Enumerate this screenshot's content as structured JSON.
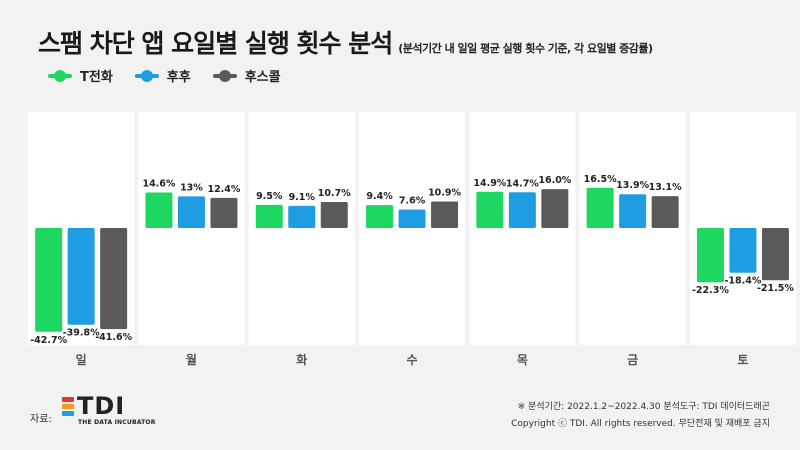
{
  "header": {
    "title": "스팸 차단 앱 요일별 실행 횟수 분석",
    "subtitle": "(분석기간 내 일일 평균 실행 횟수 기준, 각 요일별 증감률)"
  },
  "colors": {
    "background": "#f2f2f2",
    "panel": "#ffffff",
    "tick_label": "#555555",
    "data_label": "#222222"
  },
  "chart_data": {
    "type": "bar",
    "categories": [
      "일",
      "월",
      "화",
      "수",
      "목",
      "금",
      "토"
    ],
    "series": [
      {
        "name": "T전화",
        "color": "#1ed760",
        "values": [
          -42.7,
          14.6,
          9.5,
          9.4,
          14.9,
          16.5,
          -22.3
        ],
        "labels": [
          "-42.7%",
          "14.6%",
          "9.5%",
          "9.4%",
          "14.9%",
          "16.5%",
          "-22.3%"
        ]
      },
      {
        "name": "후후",
        "color": "#1f9de2",
        "values": [
          -39.8,
          13,
          9.1,
          7.6,
          14.7,
          13.9,
          -18.4
        ],
        "labels": [
          "-39.8%",
          "13%",
          "9.1%",
          "7.6%",
          "14.7%",
          "13.9%",
          "-18.4%"
        ]
      },
      {
        "name": "후스콜",
        "color": "#5a5a5a",
        "values": [
          -41.6,
          12.4,
          10.7,
          10.9,
          16.0,
          13.1,
          -21.5
        ],
        "labels": [
          "-41.6%",
          "12.4%",
          "10.7%",
          "10.9%",
          "16.0%",
          "13.1%",
          "-21.5%"
        ]
      }
    ],
    "legend_position": "top-left",
    "grid": false
  },
  "footer": {
    "source_label": "자료:",
    "logo_text": "TDI",
    "logo_tagline": "THE DATA INCUBATOR",
    "logo_colors": [
      "#e8362e",
      "#f39a1e",
      "#1f9de2"
    ],
    "period_note": "※ 분석기간: 2022.1.2~2022.4.30   분석도구: TDI 데이터드래곤",
    "copyright": "Copyright ⓒ TDI. All rights reserved. 무단전재 및 재배포 금지"
  }
}
